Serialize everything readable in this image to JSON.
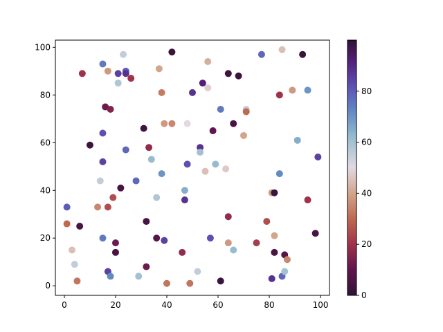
{
  "chart_data": {
    "type": "scatter",
    "colormap": "twilight_shifted",
    "xlim": [
      -3.5,
      103.5
    ],
    "ylim": [
      -4,
      103
    ],
    "xticks": [
      0,
      20,
      40,
      60,
      80,
      100
    ],
    "yticks": [
      0,
      20,
      40,
      60,
      80,
      100
    ],
    "colorbar": {
      "range": [
        0,
        100
      ],
      "ticks": [
        0,
        20,
        40,
        60,
        80
      ]
    },
    "points": [
      {
        "x": 1,
        "y": 33,
        "c": 80
      },
      {
        "x": 1,
        "y": 26,
        "c": 30
      },
      {
        "x": 3,
        "y": 15,
        "c": 45
      },
      {
        "x": 4,
        "y": 9,
        "c": 55
      },
      {
        "x": 5,
        "y": 2,
        "c": 32
      },
      {
        "x": 6,
        "y": 25,
        "c": 5
      },
      {
        "x": 7,
        "y": 89,
        "c": 20
      },
      {
        "x": 10,
        "y": 59,
        "c": 3
      },
      {
        "x": 13,
        "y": 33,
        "c": 35
      },
      {
        "x": 14,
        "y": 44,
        "c": 55
      },
      {
        "x": 15,
        "y": 93,
        "c": 75
      },
      {
        "x": 15,
        "y": 64,
        "c": 82
      },
      {
        "x": 15,
        "y": 52,
        "c": 85
      },
      {
        "x": 15,
        "y": 20,
        "c": 75
      },
      {
        "x": 16,
        "y": 75,
        "c": 12
      },
      {
        "x": 17,
        "y": 90,
        "c": 38
      },
      {
        "x": 17,
        "y": 33,
        "c": 25
      },
      {
        "x": 17,
        "y": 6,
        "c": 85
      },
      {
        "x": 18,
        "y": 74,
        "c": 15
      },
      {
        "x": 18,
        "y": 4,
        "c": 72
      },
      {
        "x": 19,
        "y": 37,
        "c": 25
      },
      {
        "x": 20,
        "y": 18,
        "c": 12
      },
      {
        "x": 20,
        "y": 14,
        "c": 5
      },
      {
        "x": 21,
        "y": 89,
        "c": 85
      },
      {
        "x": 21,
        "y": 85,
        "c": 58
      },
      {
        "x": 22,
        "y": 41,
        "c": 5
      },
      {
        "x": 23,
        "y": 97,
        "c": 55
      },
      {
        "x": 24,
        "y": 90,
        "c": 80
      },
      {
        "x": 24,
        "y": 89,
        "c": 88
      },
      {
        "x": 24,
        "y": 57,
        "c": 78
      },
      {
        "x": 26,
        "y": 87,
        "c": 20
      },
      {
        "x": 28,
        "y": 44,
        "c": 78
      },
      {
        "x": 29,
        "y": 4,
        "c": 60
      },
      {
        "x": 31,
        "y": 66,
        "c": 3
      },
      {
        "x": 32,
        "y": 27,
        "c": 5
      },
      {
        "x": 32,
        "y": 8,
        "c": 12
      },
      {
        "x": 33,
        "y": 58,
        "c": 18
      },
      {
        "x": 34,
        "y": 53,
        "c": 62
      },
      {
        "x": 36,
        "y": 37,
        "c": 58
      },
      {
        "x": 36,
        "y": 20,
        "c": 8
      },
      {
        "x": 37,
        "y": 91,
        "c": 40
      },
      {
        "x": 38,
        "y": 81,
        "c": 33
      },
      {
        "x": 38,
        "y": 47,
        "c": 70
      },
      {
        "x": 39,
        "y": 68,
        "c": 38
      },
      {
        "x": 39,
        "y": 19,
        "c": 85
      },
      {
        "x": 40,
        "y": 1,
        "c": 32
      },
      {
        "x": 42,
        "y": 98,
        "c": 2
      },
      {
        "x": 42,
        "y": 68,
        "c": 35
      },
      {
        "x": 46,
        "y": 14,
        "c": 18
      },
      {
        "x": 47,
        "y": 40,
        "c": 65
      },
      {
        "x": 47,
        "y": 36,
        "c": 88
      },
      {
        "x": 48,
        "y": 68,
        "c": 50
      },
      {
        "x": 48,
        "y": 51,
        "c": 82
      },
      {
        "x": 49,
        "y": 1,
        "c": 32
      },
      {
        "x": 50,
        "y": 81,
        "c": 88
      },
      {
        "x": 52,
        "y": 6,
        "c": 55
      },
      {
        "x": 53,
        "y": 58,
        "c": 88
      },
      {
        "x": 53,
        "y": 56,
        "c": 60
      },
      {
        "x": 54,
        "y": 85,
        "c": 92
      },
      {
        "x": 55,
        "y": 48,
        "c": 45
      },
      {
        "x": 56,
        "y": 94,
        "c": 42
      },
      {
        "x": 56,
        "y": 83,
        "c": 48
      },
      {
        "x": 57,
        "y": 20,
        "c": 82
      },
      {
        "x": 58,
        "y": 65,
        "c": 10
      },
      {
        "x": 59,
        "y": 51,
        "c": 62
      },
      {
        "x": 61,
        "y": 74,
        "c": 75
      },
      {
        "x": 61,
        "y": 2,
        "c": 2
      },
      {
        "x": 63,
        "y": 49,
        "c": 47
      },
      {
        "x": 64,
        "y": 89,
        "c": 3
      },
      {
        "x": 64,
        "y": 29,
        "c": 18
      },
      {
        "x": 64,
        "y": 18,
        "c": 38
      },
      {
        "x": 66,
        "y": 68,
        "c": 5
      },
      {
        "x": 66,
        "y": 15,
        "c": 62
      },
      {
        "x": 68,
        "y": 88,
        "c": 2
      },
      {
        "x": 70,
        "y": 63,
        "c": 40
      },
      {
        "x": 71,
        "y": 74,
        "c": 55
      },
      {
        "x": 71,
        "y": 73,
        "c": 30
      },
      {
        "x": 75,
        "y": 18,
        "c": 22
      },
      {
        "x": 77,
        "y": 97,
        "c": 78
      },
      {
        "x": 79,
        "y": 27,
        "c": 25
      },
      {
        "x": 81,
        "y": 39,
        "c": 38
      },
      {
        "x": 81,
        "y": 3,
        "c": 88
      },
      {
        "x": 82,
        "y": 39,
        "c": 2
      },
      {
        "x": 82,
        "y": 21,
        "c": 40
      },
      {
        "x": 82,
        "y": 14,
        "c": 5
      },
      {
        "x": 84,
        "y": 80,
        "c": 20
      },
      {
        "x": 84,
        "y": 47,
        "c": 72
      },
      {
        "x": 85,
        "y": 99,
        "c": 45
      },
      {
        "x": 85,
        "y": 4,
        "c": 78
      },
      {
        "x": 86,
        "y": 13,
        "c": 8
      },
      {
        "x": 86,
        "y": 6,
        "c": 60
      },
      {
        "x": 87,
        "y": 11,
        "c": 35
      },
      {
        "x": 89,
        "y": 82,
        "c": 38
      },
      {
        "x": 91,
        "y": 61,
        "c": 65
      },
      {
        "x": 93,
        "y": 97,
        "c": 2
      },
      {
        "x": 95,
        "y": 82,
        "c": 70
      },
      {
        "x": 95,
        "y": 36,
        "c": 20
      },
      {
        "x": 98,
        "y": 22,
        "c": 5
      },
      {
        "x": 99,
        "y": 54,
        "c": 85
      }
    ]
  }
}
